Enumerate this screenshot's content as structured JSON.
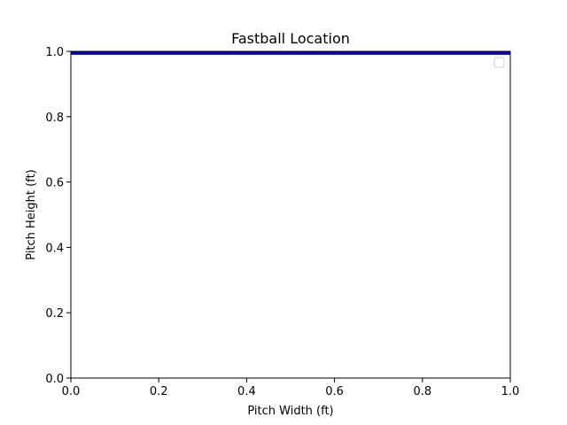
{
  "chart_data": {
    "type": "line",
    "title": "Fastball Location",
    "xlabel": "Pitch Width (ft)",
    "ylabel": "Pitch Height (ft)",
    "xlim": [
      0,
      1
    ],
    "ylim": [
      0,
      1
    ],
    "x_ticks": [
      "0.0",
      "0.2",
      "0.4",
      "0.6",
      "0.8",
      "1.0"
    ],
    "y_ticks": [
      "0.0",
      "0.2",
      "0.4",
      "0.6",
      "0.8",
      "1.0"
    ],
    "grid": false,
    "legend": {
      "placement": "upper right",
      "entries": []
    },
    "series": [
      {
        "color": "#0000cc",
        "x": [
          0,
          1
        ],
        "y": [
          0.995,
          0.995
        ]
      }
    ]
  }
}
